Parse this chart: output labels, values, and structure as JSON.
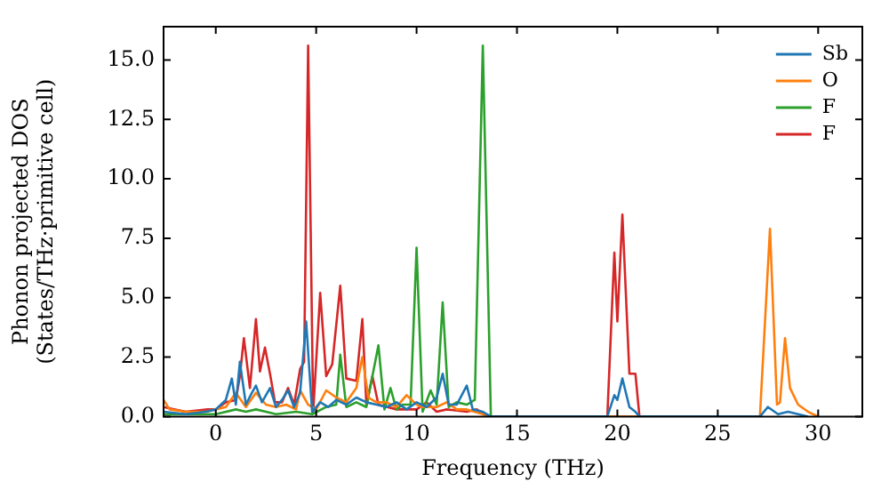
{
  "chart_data": {
    "type": "line",
    "xlabel": "Frequency (THz)",
    "ylabel": "Phonon projected DOS\n(States/THz·primitive cell)",
    "xlim": [
      -2.6,
      32.2
    ],
    "ylim": [
      0,
      16.4
    ],
    "xticks": [
      0,
      5,
      10,
      15,
      20,
      25,
      30
    ],
    "yticks": [
      {
        "value": 0,
        "label": "0.0"
      },
      {
        "value": 2.5,
        "label": "2.5"
      },
      {
        "value": 5,
        "label": "5.0"
      },
      {
        "value": 7.5,
        "label": "7.5"
      },
      {
        "value": 10,
        "label": "10.0"
      },
      {
        "value": 12.5,
        "label": "12.5"
      },
      {
        "value": 15,
        "label": "15.0"
      }
    ],
    "legend": "top right",
    "grid": false,
    "marker": "none",
    "line_style": "solid",
    "series": [
      {
        "name": "Sb",
        "color": "#1f77b4",
        "x": [
          -2.6,
          -1.5,
          -0.5,
          0,
          0.5,
          0.8,
          1.0,
          1.2,
          1.5,
          1.8,
          2.0,
          2.3,
          2.7,
          3.0,
          3.3,
          3.6,
          3.9,
          4.2,
          4.5,
          4.8,
          5.2,
          5.6,
          6.0,
          6.5,
          7.0,
          7.5,
          8.0,
          8.5,
          9.0,
          9.5,
          10.0,
          10.5,
          11.0,
          11.3,
          11.6,
          12.0,
          12.5,
          12.8,
          13.3,
          13.7,
          19.5,
          19.85,
          20.0,
          20.25,
          20.6,
          20.9,
          21.1,
          27.1,
          27.5,
          28.0,
          28.5,
          29.0,
          29.5
        ],
        "values": [
          0.2,
          0.1,
          0.2,
          0.3,
          0.7,
          1.6,
          0.5,
          2.3,
          0.5,
          1.0,
          1.3,
          0.6,
          1.2,
          0.4,
          0.7,
          1.1,
          0.4,
          1.0,
          4.0,
          0.2,
          0.6,
          0.4,
          0.7,
          0.5,
          0.8,
          0.6,
          0.5,
          0.4,
          0.6,
          0.3,
          0.6,
          0.4,
          0.8,
          1.8,
          0.5,
          0.5,
          1.3,
          0.3,
          0.2,
          0,
          0,
          0.9,
          0.7,
          1.6,
          0.4,
          0.2,
          0,
          0,
          0.4,
          0.1,
          0.2,
          0.1,
          0
        ]
      },
      {
        "name": "O",
        "color": "#ff7f0e",
        "x": [
          -2.6,
          -2.3,
          -1.5,
          -0.5,
          0,
          0.5,
          1.0,
          1.5,
          2.0,
          2.5,
          3.0,
          3.5,
          4.0,
          4.2,
          4.6,
          5.0,
          5.5,
          6.0,
          6.5,
          7.0,
          7.3,
          7.6,
          8.0,
          8.5,
          9.0,
          9.5,
          10.0,
          10.3,
          11.0,
          11.5,
          12.0,
          12.5,
          13.3,
          13.7,
          27.1,
          27.6,
          27.95,
          28.1,
          28.35,
          28.6,
          29.0,
          29.5,
          30.0
        ],
        "values": [
          0.7,
          0.3,
          0.2,
          0.2,
          0.3,
          0.4,
          1.0,
          0.4,
          1.0,
          0.5,
          0.4,
          0.5,
          0.3,
          1.1,
          0.5,
          0.3,
          1.1,
          0.8,
          0.6,
          1.2,
          2.5,
          0.8,
          0.6,
          0.6,
          0.4,
          0.9,
          0.5,
          0.4,
          0.4,
          0.6,
          0.3,
          0.3,
          0.1,
          0,
          0,
          7.9,
          0.5,
          0.6,
          3.3,
          1.2,
          0.5,
          0.2,
          0
        ]
      },
      {
        "name": "F",
        "color": "#2ca02c",
        "x": [
          -2.6,
          -1,
          0,
          1.0,
          1.5,
          2.0,
          2.5,
          3.0,
          4.0,
          4.8,
          5.5,
          6.0,
          6.2,
          6.5,
          7.0,
          7.5,
          8.1,
          8.4,
          8.7,
          9.0,
          9.3,
          9.7,
          10.0,
          10.3,
          10.7,
          11.0,
          11.3,
          11.6,
          12.0,
          12.5,
          12.9,
          13.3,
          13.7
        ],
        "values": [
          0.1,
          0.1,
          0.1,
          0.3,
          0.2,
          0.3,
          0.2,
          0.1,
          0.2,
          0.1,
          0.4,
          0.5,
          2.6,
          0.4,
          0.6,
          0.4,
          3.0,
          0.3,
          1.2,
          0.3,
          0.5,
          0.5,
          7.1,
          0.2,
          1.1,
          0.5,
          4.8,
          0.4,
          0.6,
          0.5,
          0.7,
          15.6,
          0
        ]
      },
      {
        "name": "F",
        "color": "#d62728",
        "x": [
          -2.6,
          -1.5,
          -0.4,
          0,
          0.5,
          1.0,
          1.2,
          1.4,
          1.7,
          2.0,
          2.2,
          2.45,
          2.7,
          2.95,
          3.3,
          3.6,
          3.9,
          4.2,
          4.4,
          4.6,
          4.85,
          5.2,
          5.5,
          5.8,
          6.2,
          6.5,
          7.0,
          7.3,
          7.5,
          7.8,
          8.1,
          9.0,
          10.0,
          10.5,
          11.0,
          11.5,
          12.5,
          13.0,
          13.5,
          19.5,
          19.85,
          20.0,
          20.25,
          20.6,
          20.9,
          21.1
        ],
        "values": [
          0.4,
          0.2,
          0.3,
          0.3,
          0.6,
          0.7,
          1.7,
          3.3,
          1.2,
          4.1,
          1.9,
          2.9,
          1.8,
          0.6,
          0.6,
          1.2,
          0.5,
          2.0,
          2.3,
          15.6,
          0.2,
          5.2,
          1.7,
          2.2,
          5.5,
          1.6,
          1.5,
          4.1,
          0.5,
          1.7,
          0.5,
          0.3,
          0.3,
          0.6,
          0.2,
          0.3,
          0.2,
          0.3,
          0,
          0,
          6.9,
          4.0,
          8.5,
          1.8,
          1.8,
          0
        ]
      }
    ]
  }
}
